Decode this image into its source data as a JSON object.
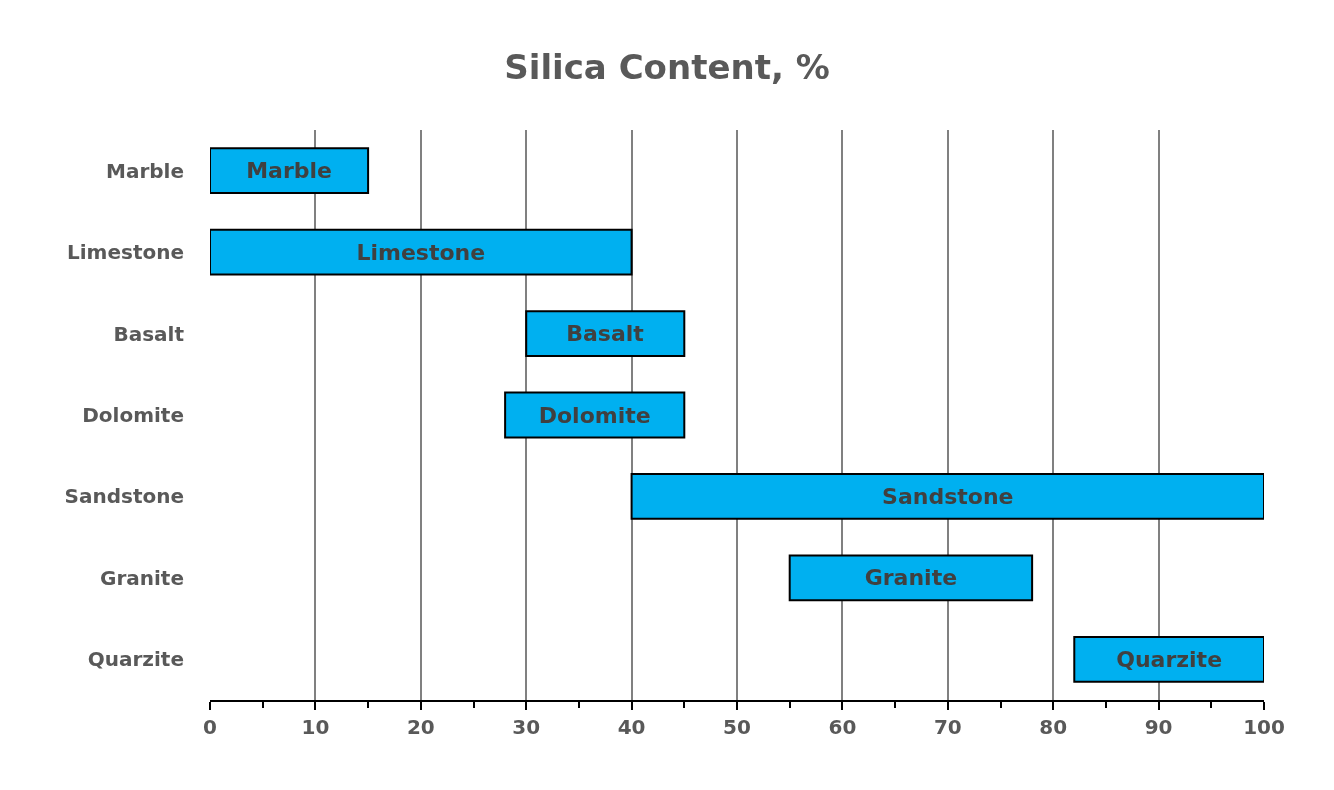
{
  "chart_data": {
    "type": "bar",
    "title": "Silica Content, %",
    "orientation": "horizontal",
    "categories": [
      "Marble",
      "Limestone",
      "Basalt",
      "Dolomite",
      "Sandstone",
      "Granite",
      "Quarzite"
    ],
    "base": [
      0,
      0,
      30,
      28,
      40,
      55,
      82
    ],
    "values": [
      15,
      40,
      15,
      17,
      60,
      23,
      18
    ],
    "color": "#00b0f0",
    "xlim": [
      0,
      100
    ],
    "xticks": [
      0,
      {
        "value": 5,
        "label": null
      },
      10,
      {
        "value": 15,
        "label": null
      },
      20,
      {
        "value": 25,
        "label": null
      },
      30,
      {
        "value": 35,
        "label": null
      },
      40,
      {
        "value": 45,
        "label": null
      },
      50,
      {
        "value": 55,
        "label": null
      },
      60,
      {
        "value": 65,
        "label": null
      },
      70,
      {
        "value": 75,
        "label": null
      },
      80,
      {
        "value": 85,
        "label": null
      },
      90,
      {
        "value": 95,
        "label": null
      },
      100
    ],
    "grid": "x"
  }
}
